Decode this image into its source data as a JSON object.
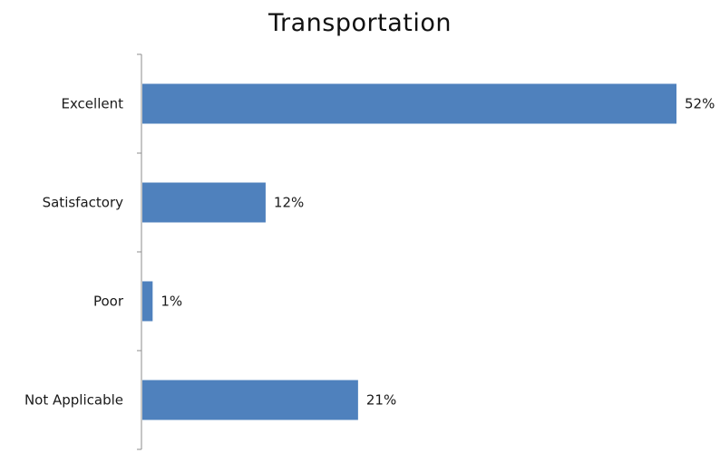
{
  "chart_data": {
    "type": "bar",
    "orientation": "horizontal",
    "title": "Transportation",
    "categories": [
      "Excellent",
      "Satisfactory",
      "Poor",
      "Not Applicable"
    ],
    "values": [
      52,
      12,
      1,
      21
    ],
    "value_labels": [
      "52%",
      "12%",
      "1%",
      "21%"
    ],
    "xlim": [
      0,
      52
    ],
    "grid": false,
    "legend": "none",
    "bar_color": "#4f81bd",
    "axis_color": "#8c8c8c"
  }
}
